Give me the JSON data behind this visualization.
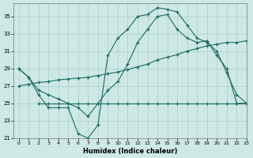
{
  "xlabel": "Humidex (Indice chaleur)",
  "background_color": "#cde8e5",
  "grid_color": "#aacfcc",
  "line_color": "#1a6b60",
  "xlim": [
    -0.5,
    23
  ],
  "ylim": [
    21,
    36.5
  ],
  "yticks": [
    21,
    23,
    25,
    27,
    29,
    31,
    33,
    35
  ],
  "xticks": [
    0,
    1,
    2,
    3,
    4,
    5,
    6,
    7,
    8,
    9,
    10,
    11,
    12,
    13,
    14,
    15,
    16,
    17,
    18,
    19,
    20,
    21,
    22,
    23
  ],
  "line1_x": [
    0,
    1,
    2,
    3,
    4,
    5,
    6,
    7,
    8,
    9,
    10,
    11,
    12,
    13,
    14,
    15,
    16,
    17,
    18,
    19,
    20,
    21,
    22,
    23
  ],
  "line1_y": [
    29.0,
    28.0,
    26.0,
    24.5,
    24.5,
    24.5,
    21.5,
    21.0,
    22.5,
    30.5,
    32.5,
    33.5,
    35.0,
    35.2,
    36.0,
    35.8,
    35.5,
    34.0,
    32.5,
    32.0,
    31.0,
    28.5,
    26.0,
    25.0
  ],
  "line2_x": [
    0,
    1,
    2,
    3,
    4,
    5,
    6,
    7,
    8,
    9,
    10,
    11,
    12,
    13,
    14,
    15,
    16,
    17,
    18,
    19,
    20,
    21,
    22,
    23
  ],
  "line2_y": [
    29.0,
    28.0,
    26.5,
    26.0,
    25.5,
    25.0,
    24.5,
    23.5,
    25.0,
    26.5,
    27.5,
    29.5,
    32.0,
    33.5,
    35.0,
    35.2,
    33.5,
    32.5,
    32.0,
    32.2,
    30.5,
    29.0,
    25.0,
    25.0
  ],
  "line3_x": [
    0,
    1,
    2,
    3,
    4,
    5,
    6,
    7,
    8,
    9,
    10,
    11,
    12,
    13,
    14,
    15,
    16,
    17,
    18,
    19,
    20,
    21,
    22,
    23
  ],
  "line3_y": [
    27.0,
    27.2,
    27.4,
    27.5,
    27.7,
    27.8,
    27.9,
    28.0,
    28.2,
    28.4,
    28.6,
    28.9,
    29.2,
    29.5,
    30.0,
    30.3,
    30.6,
    31.0,
    31.3,
    31.6,
    31.8,
    32.0,
    32.0,
    32.2
  ],
  "line4_x": [
    2,
    3,
    4,
    5,
    6,
    7,
    8,
    9,
    10,
    11,
    12,
    13,
    14,
    15,
    16,
    17,
    18,
    19,
    20,
    21,
    22,
    23
  ],
  "line4_y": [
    25.0,
    25.0,
    25.0,
    25.0,
    25.0,
    25.0,
    25.0,
    25.0,
    25.0,
    25.0,
    25.0,
    25.0,
    25.0,
    25.0,
    25.0,
    25.0,
    25.0,
    25.0,
    25.0,
    25.0,
    25.0,
    25.0
  ]
}
